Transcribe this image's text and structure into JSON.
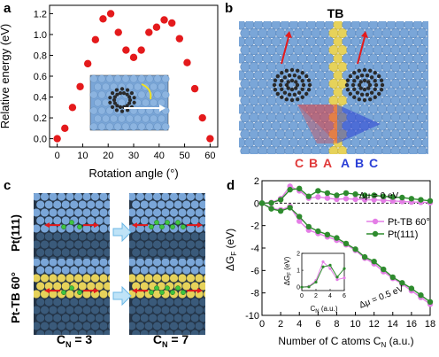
{
  "panels": {
    "a": {
      "label": "a",
      "ylabel": "Relative energy (eV)",
      "xlabel": "Rotation angle (°)",
      "xticks": [
        "0",
        "10",
        "20",
        "30",
        "40",
        "50",
        "60"
      ],
      "yticks": [
        "0.0",
        "0.2",
        "0.4",
        "0.6",
        "0.8",
        "1.0",
        "1.2"
      ]
    },
    "b": {
      "label": "b",
      "boundary": "TB",
      "stacking_left": [
        "C",
        "B",
        "A"
      ],
      "stacking_right": [
        "A",
        "B",
        "C"
      ]
    },
    "c": {
      "label": "c",
      "row_top": "Pt(111)",
      "row_bottom": "Pt-TB 60°",
      "col_left": "C",
      "col_left_sub": "N",
      "col_left_val": " = 3",
      "col_right": "C",
      "col_right_sub": "N",
      "col_right_val": " = 7"
    },
    "d": {
      "label": "d",
      "ylabel_main": "ΔG",
      "ylabel_sub": "F",
      "ylabel_unit": " (eV)",
      "xlabel_main": "Number of C atoms C",
      "xlabel_sub": "N",
      "xlabel_unit": " (a.u.)",
      "ann_top": "Δμ = 0 eV",
      "ann_bottom": "Δμ = 0.5 eV",
      "legend": [
        "Pt-TB 60°",
        "Pt(111)"
      ],
      "inset_xlabel": "C",
      "inset_xlabel_sub": "N",
      "inset_xlabel_unit": " (a.u.)",
      "inset_ylabel": "ΔG",
      "inset_ylabel_sub": "F",
      "inset_ylabel_unit": " (eV)"
    }
  },
  "colors": {
    "pt_atom": "#7aa6d8",
    "tb_atom": "#e6d25a",
    "carbon": "#2a2a2a",
    "red_dot": "#e41a1c",
    "pink": "#e47ee6",
    "green": "#2e8b2e",
    "stack_red": "#e03a3a",
    "stack_blue": "#2a3fd6"
  },
  "chart_data": [
    {
      "panel": "a",
      "type": "scatter",
      "xlabel": "Rotation angle (°)",
      "ylabel": "Relative energy (eV)",
      "xlim": [
        -3,
        63
      ],
      "ylim": [
        -0.08,
        1.28
      ],
      "x": [
        0,
        3,
        6,
        9,
        12,
        15,
        18,
        21,
        24,
        27,
        30,
        33,
        36,
        39,
        42,
        45,
        48,
        51,
        54,
        57,
        60
      ],
      "y": [
        0.0,
        0.1,
        0.3,
        0.5,
        0.72,
        0.95,
        1.15,
        1.2,
        1.02,
        0.85,
        0.78,
        0.85,
        1.02,
        1.07,
        1.14,
        1.11,
        0.96,
        0.73,
        0.48,
        0.2,
        0.0
      ]
    },
    {
      "panel": "d",
      "type": "line",
      "xlabel": "Number of C atoms CN (a.u.)",
      "ylabel": "ΔGF (eV)",
      "xlim": [
        0,
        18
      ],
      "ylim": [
        -10,
        2
      ],
      "x": [
        0,
        1,
        2,
        3,
        4,
        5,
        6,
        7,
        8,
        9,
        10,
        11,
        12,
        13,
        14,
        15,
        16,
        17,
        18
      ],
      "series": [
        {
          "name": "Pt-TB 60°",
          "group": "mu0",
          "values": [
            0.0,
            0.05,
            0.4,
            1.5,
            1.1,
            0.45,
            0.55,
            0.45,
            0.35,
            0.4,
            0.35,
            0.3,
            0.3,
            0.25,
            0.2,
            0.15,
            0.1,
            0.08,
            0.05
          ]
        },
        {
          "name": "Pt(111)",
          "group": "mu0",
          "values": [
            0.0,
            0.02,
            0.3,
            1.2,
            1.3,
            0.6,
            1.1,
            0.9,
            0.7,
            0.9,
            0.8,
            0.7,
            0.7,
            0.6,
            0.55,
            0.5,
            0.4,
            0.3,
            0.2
          ]
        },
        {
          "name": "Pt-TB 60°",
          "group": "mu05",
          "values": [
            0.0,
            -0.45,
            -0.6,
            -0.3,
            -1.6,
            -2.4,
            -2.7,
            -3.0,
            -3.3,
            -3.7,
            -4.2,
            -4.9,
            -5.4,
            -6.1,
            -6.7,
            -7.2,
            -7.8,
            -8.4,
            -9.0
          ]
        },
        {
          "name": "Pt(111)",
          "group": "mu05",
          "values": [
            0.0,
            -0.5,
            -0.7,
            -0.4,
            -1.2,
            -2.1,
            -2.5,
            -2.8,
            -3.1,
            -3.6,
            -4.1,
            -4.8,
            -5.2,
            -5.9,
            -6.6,
            -7.1,
            -7.6,
            -8.2,
            -8.8
          ]
        }
      ],
      "yticks": [
        "2",
        "0",
        "-2",
        "-4",
        "-6",
        "-8",
        "-10"
      ],
      "xticks": [
        "0",
        "2",
        "4",
        "6",
        "8",
        "10",
        "12",
        "14",
        "16",
        "18"
      ],
      "inset": {
        "xlim": [
          0,
          6
        ],
        "ylim": [
          -0.2,
          2
        ],
        "x": [
          0,
          1,
          2,
          3,
          4,
          5,
          6
        ],
        "xticks": [
          "0",
          "2",
          "4",
          "6"
        ],
        "yticks": [
          "0",
          "1",
          "2"
        ],
        "series": [
          {
            "name": "Pt-TB 60°",
            "values": [
              0.0,
              0.05,
              0.4,
              1.5,
              1.1,
              0.45,
              0.55
            ]
          },
          {
            "name": "Pt(111)",
            "values": [
              0.0,
              0.02,
              0.3,
              1.2,
              1.3,
              0.6,
              1.1
            ]
          }
        ]
      }
    }
  ]
}
